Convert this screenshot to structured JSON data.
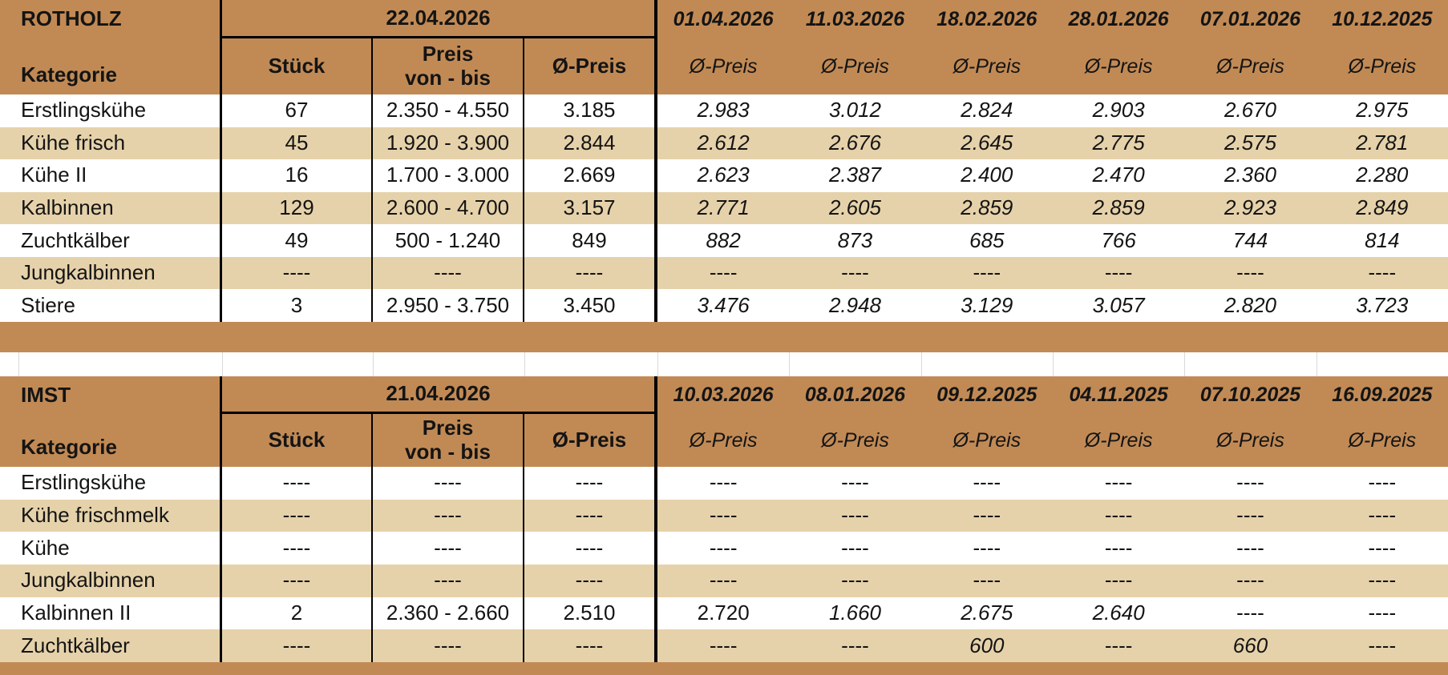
{
  "colors": {
    "header_brown": "#c18a55",
    "row_tan": "#e6d2aa",
    "row_white": "#ffffff",
    "gridline_gray": "#d9d9d9",
    "line_black": "#000000"
  },
  "gap_gridline_positions": [
    23,
    277,
    465,
    654,
    820,
    984,
    1149,
    1313,
    1477,
    1642
  ],
  "tables": [
    {
      "name": "ROTHOLZ",
      "kategorie_label": "Kategorie",
      "current_date": "22.04.2026",
      "col_stueck": "Stück",
      "col_preis_line1": "Preis",
      "col_preis_line2": "von - bis",
      "col_avg": "Ø-Preis",
      "history_subheader": "Ø-Preis",
      "history_dates": [
        "01.04.2026",
        "11.03.2026",
        "18.02.2026",
        "28.01.2026",
        "07.01.2026",
        "10.12.2025"
      ],
      "rows": [
        {
          "kategorie": "Erstlingskühe",
          "stueck": "67",
          "preis": "2.350 - 4.550",
          "avg": "3.185",
          "history": [
            "2.983",
            "3.012",
            "2.824",
            "2.903",
            "2.670",
            "2.975"
          ]
        },
        {
          "kategorie": "Kühe frisch",
          "stueck": "45",
          "preis": "1.920 - 3.900",
          "avg": "2.844",
          "history": [
            "2.612",
            "2.676",
            "2.645",
            "2.775",
            "2.575",
            "2.781"
          ]
        },
        {
          "kategorie": "Kühe II",
          "stueck": "16",
          "preis": "1.700 - 3.000",
          "avg": "2.669",
          "history": [
            "2.623",
            "2.387",
            "2.400",
            "2.470",
            "2.360",
            "2.280"
          ]
        },
        {
          "kategorie": "Kalbinnen",
          "stueck": "129",
          "preis": "2.600 - 4.700",
          "avg": "3.157",
          "history": [
            "2.771",
            "2.605",
            "2.859",
            "2.859",
            "2.923",
            "2.849"
          ]
        },
        {
          "kategorie": "Zuchtkälber",
          "stueck": "49",
          "preis": "500 - 1.240",
          "avg": "849",
          "history": [
            "882",
            "873",
            "685",
            "766",
            "744",
            "814"
          ]
        },
        {
          "kategorie": "Jungkalbinnen",
          "stueck": "----",
          "preis": "----",
          "avg": "----",
          "history": [
            "----",
            "----",
            "----",
            "----",
            "----",
            "----"
          ]
        },
        {
          "kategorie": "Stiere",
          "stueck": "3",
          "preis": "2.950 - 3.750",
          "avg": "3.450",
          "history": [
            "3.476",
            "2.948",
            "3.129",
            "3.057",
            "2.820",
            "3.723"
          ]
        }
      ]
    },
    {
      "name": "IMST",
      "kategorie_label": "Kategorie",
      "current_date": "21.04.2026",
      "col_stueck": "Stück",
      "col_preis_line1": "Preis",
      "col_preis_line2": "von - bis",
      "col_avg": "Ø-Preis",
      "history_subheader": "Ø-Preis",
      "history_dates": [
        "10.03.2026",
        "08.01.2026",
        "09.12.2025",
        "04.11.2025",
        "07.10.2025",
        "16.09.2025"
      ],
      "rows": [
        {
          "kategorie": "Erstlingskühe",
          "stueck": "----",
          "preis": "----",
          "avg": "----",
          "history": [
            "----",
            "----",
            "----",
            "----",
            "----",
            "----"
          ]
        },
        {
          "kategorie": "Kühe frischmelk",
          "stueck": "----",
          "preis": "----",
          "avg": "----",
          "history": [
            "----",
            "----",
            "----",
            "----",
            "----",
            "----"
          ]
        },
        {
          "kategorie": "Kühe",
          "stueck": "----",
          "preis": "----",
          "avg": "----",
          "history": [
            "----",
            "----",
            "----",
            "----",
            "----",
            "----"
          ]
        },
        {
          "kategorie": "Jungkalbinnen",
          "stueck": "----",
          "preis": "----",
          "avg": "----",
          "history": [
            "----",
            "----",
            "----",
            "----",
            "----",
            "----"
          ]
        },
        {
          "kategorie": "Kalbinnen II",
          "stueck": "2",
          "preis": "2.360 - 2.660",
          "avg": "2.510",
          "history": [
            "2.720",
            "1.660",
            "2.675",
            "2.640",
            "----",
            "----"
          ],
          "history_upright": [
            0
          ]
        },
        {
          "kategorie": "Zuchtkälber",
          "stueck": "----",
          "preis": "----",
          "avg": "----",
          "history": [
            "----",
            "----",
            "600",
            "----",
            "660",
            "----"
          ]
        }
      ]
    }
  ]
}
